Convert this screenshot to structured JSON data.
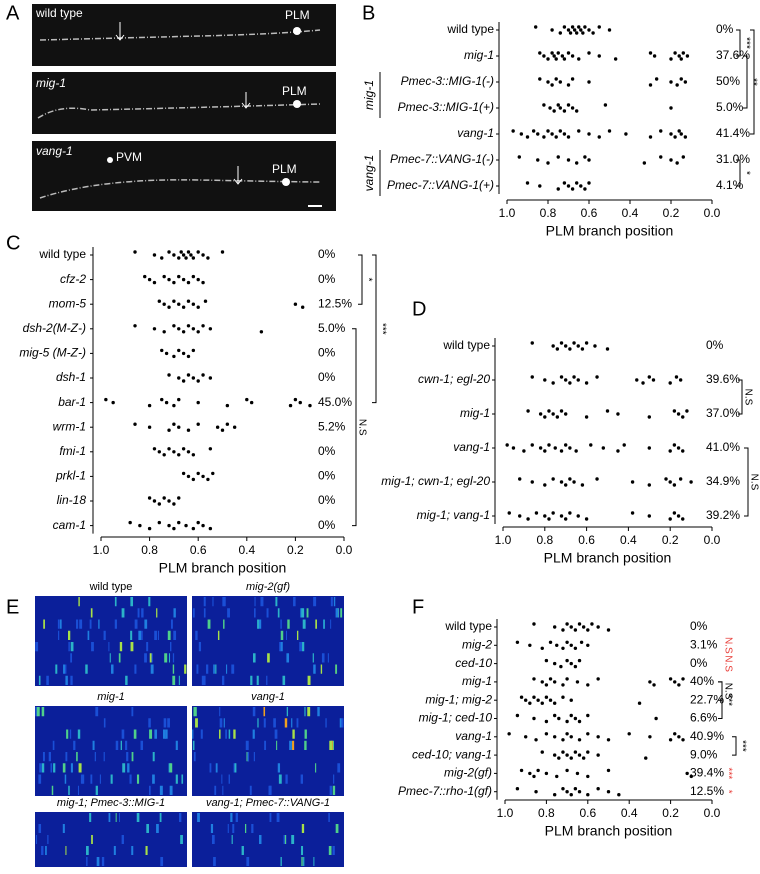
{
  "panel_labels": [
    "A",
    "B",
    "C",
    "D",
    "E",
    "F"
  ],
  "panel_a": {
    "images": [
      {
        "genotype": "wild type",
        "cells": [
          "PLM"
        ]
      },
      {
        "genotype": "mig-1",
        "cells": [
          "PLM"
        ]
      },
      {
        "genotype": "vang-1",
        "cells": [
          "PVM",
          "PLM"
        ]
      }
    ]
  },
  "panel_e": {
    "titles": [
      "wild type",
      "mig-2(gf)",
      "mig-1",
      "vang-1",
      "mig-1; Pmec-3::MIG-1",
      "vang-1; Pmec-7::VANG-1"
    ]
  },
  "chart_data": [
    {
      "type": "dot",
      "xlabel": "PLM branch position",
      "xlim": [
        1,
        0
      ],
      "xticks": [
        {
          "value": 1,
          "label": "1.0"
        },
        0.8,
        0.6,
        0.4,
        0.2,
        {
          "value": 0,
          "label": "0.0"
        }
      ],
      "color": "#000000",
      "categories": [
        "wild type",
        "mig-1",
        "Pmec-3::MIG-1(-)",
        "Pmec-3::MIG-1(+)",
        "vang-1",
        "Pmec-7::VANG-1(-)",
        "Pmec-7::VANG-1(+)"
      ],
      "values": [
        [
          0.86,
          0.78,
          0.74,
          0.72,
          0.7,
          0.69,
          0.68,
          0.67,
          0.66,
          0.65,
          0.64,
          0.63,
          0.62,
          0.6,
          0.58,
          0.55,
          0.5
        ],
        [
          0.84,
          0.82,
          0.8,
          0.78,
          0.77,
          0.76,
          0.75,
          0.73,
          0.72,
          0.7,
          0.68,
          0.65,
          0.6,
          0.55,
          0.47,
          0.3,
          0.28,
          0.2,
          0.18,
          0.16,
          0.15,
          0.14,
          0.12
        ],
        [
          0.84,
          0.8,
          0.78,
          0.76,
          0.74,
          0.7,
          0.68,
          0.6,
          0.3,
          0.27,
          0.2,
          0.17,
          0.15,
          0.13
        ],
        [
          0.82,
          0.79,
          0.77,
          0.75,
          0.74,
          0.72,
          0.7,
          0.68,
          0.66,
          0.52,
          0.2
        ],
        [
          0.97,
          0.93,
          0.9,
          0.87,
          0.85,
          0.82,
          0.8,
          0.78,
          0.76,
          0.74,
          0.72,
          0.7,
          0.65,
          0.6,
          0.55,
          0.5,
          0.42,
          0.3,
          0.25,
          0.2,
          0.18,
          0.16,
          0.15,
          0.13
        ],
        [
          0.94,
          0.85,
          0.8,
          0.75,
          0.7,
          0.66,
          0.62,
          0.6,
          0.33,
          0.25,
          0.2,
          0.17,
          0.14
        ],
        [
          0.9,
          0.84,
          0.75,
          0.72,
          0.7,
          0.68,
          0.66,
          0.64,
          0.62,
          0.6
        ]
      ],
      "percents": [
        0,
        37.6,
        50,
        5.0,
        41.4,
        31.0,
        4.1
      ],
      "percent_labels": [
        "0%",
        "37.6%",
        "50%",
        "5.0%",
        "41.4%",
        "31.0%",
        "4.1%"
      ],
      "group_labels": [
        {
          "label": "mig-1",
          "rows": [
            2,
            3
          ]
        },
        {
          "label": "vang-1",
          "rows": [
            5,
            6
          ]
        }
      ],
      "significance": [
        {
          "label": "***",
          "rows": [
            0,
            1
          ],
          "color": "#000000"
        },
        {
          "label": "***",
          "rows": [
            0,
            4
          ],
          "color": "#000000"
        },
        {
          "label": "**",
          "rows": [
            1,
            3
          ],
          "color": "#000000"
        },
        {
          "label": "*",
          "rows": [
            5,
            6
          ],
          "color": "#000000"
        }
      ]
    },
    {
      "type": "dot",
      "xlabel": "PLM branch position",
      "xlim": [
        1,
        0
      ],
      "xticks": [
        {
          "value": 1,
          "label": "1.0"
        },
        0.8,
        0.6,
        0.4,
        0.2,
        {
          "value": 0,
          "label": "0.0"
        }
      ],
      "color": "#000000",
      "categories": [
        "wild type",
        "cfz-2",
        "mom-5",
        "dsh-2(M-Z-)",
        "mig-5 (M-Z-)",
        "dsh-1",
        "bar-1",
        "wrm-1",
        "fmi-1",
        "prkl-1",
        "lin-18",
        "cam-1"
      ],
      "values": [
        [
          0.86,
          0.78,
          0.75,
          0.72,
          0.7,
          0.68,
          0.67,
          0.66,
          0.65,
          0.64,
          0.63,
          0.62,
          0.6,
          0.58,
          0.56,
          0.5
        ],
        [
          0.82,
          0.8,
          0.78,
          0.74,
          0.72,
          0.7,
          0.68,
          0.66,
          0.64,
          0.62,
          0.6,
          0.58
        ],
        [
          0.76,
          0.74,
          0.72,
          0.7,
          0.68,
          0.66,
          0.64,
          0.62,
          0.6,
          0.57,
          0.2,
          0.17
        ],
        [
          0.86,
          0.78,
          0.74,
          0.7,
          0.68,
          0.66,
          0.64,
          0.62,
          0.6,
          0.58,
          0.55,
          0.34
        ],
        [
          0.75,
          0.73,
          0.7,
          0.68,
          0.66,
          0.64,
          0.62
        ],
        [
          0.72,
          0.68,
          0.66,
          0.64,
          0.62,
          0.6,
          0.58,
          0.55
        ],
        [
          0.98,
          0.95,
          0.8,
          0.75,
          0.73,
          0.7,
          0.68,
          0.6,
          0.48,
          0.4,
          0.38,
          0.22,
          0.2,
          0.18,
          0.14
        ],
        [
          0.86,
          0.8,
          0.72,
          0.7,
          0.68,
          0.64,
          0.6,
          0.52,
          0.5,
          0.48,
          0.45
        ],
        [
          0.78,
          0.76,
          0.74,
          0.72,
          0.7,
          0.68,
          0.66,
          0.64,
          0.62,
          0.55
        ],
        [
          0.66,
          0.64,
          0.62,
          0.6,
          0.58,
          0.56,
          0.54
        ],
        [
          0.8,
          0.78,
          0.76,
          0.74,
          0.72,
          0.7,
          0.68
        ],
        [
          0.88,
          0.84,
          0.8,
          0.76,
          0.72,
          0.7,
          0.68,
          0.65,
          0.62,
          0.6,
          0.58,
          0.55
        ]
      ],
      "percents": [
        0,
        0,
        12.5,
        5.0,
        0,
        0,
        45.0,
        5.2,
        0,
        0,
        0,
        0
      ],
      "percent_labels": [
        "0%",
        "0%",
        "12.5%",
        "5.0%",
        "0%",
        "0%",
        "45.0%",
        "5.2%",
        "0%",
        "0%",
        "0%",
        "0%"
      ],
      "significance": [
        {
          "label": "*",
          "rows": [
            0,
            2
          ],
          "color": "#000000"
        },
        {
          "label": "***",
          "rows": [
            0,
            6
          ],
          "color": "#000000"
        },
        {
          "label": "N.S",
          "rows": [
            3,
            11
          ],
          "color": "#000000"
        }
      ]
    },
    {
      "type": "dot",
      "xlabel": "PLM branch position",
      "xlim": [
        1,
        0
      ],
      "xticks": [
        {
          "value": 1,
          "label": "1.0"
        },
        0.8,
        0.6,
        0.4,
        0.2,
        {
          "value": 0,
          "label": "0.0"
        }
      ],
      "color": "#000000",
      "categories": [
        "wild type",
        "cwn-1; egl-20",
        "mig-1",
        "vang-1",
        "mig-1; cwn-1; egl-20",
        "mig-1; vang-1"
      ],
      "values": [
        [
          0.86,
          0.76,
          0.74,
          0.72,
          0.7,
          0.68,
          0.66,
          0.64,
          0.62,
          0.6,
          0.56,
          0.5
        ],
        [
          0.86,
          0.8,
          0.76,
          0.72,
          0.7,
          0.68,
          0.66,
          0.64,
          0.6,
          0.55,
          0.36,
          0.33,
          0.3,
          0.28,
          0.2,
          0.17,
          0.15
        ],
        [
          0.88,
          0.82,
          0.8,
          0.78,
          0.76,
          0.74,
          0.72,
          0.7,
          0.6,
          0.5,
          0.45,
          0.3,
          0.18,
          0.16,
          0.14,
          0.12
        ],
        [
          0.98,
          0.95,
          0.9,
          0.86,
          0.82,
          0.8,
          0.78,
          0.75,
          0.72,
          0.7,
          0.68,
          0.65,
          0.58,
          0.52,
          0.45,
          0.42,
          0.3,
          0.2,
          0.18,
          0.16,
          0.14
        ],
        [
          0.92,
          0.86,
          0.8,
          0.76,
          0.72,
          0.7,
          0.68,
          0.66,
          0.62,
          0.55,
          0.38,
          0.3,
          0.22,
          0.2,
          0.18,
          0.15,
          0.1
        ],
        [
          0.97,
          0.92,
          0.88,
          0.84,
          0.8,
          0.78,
          0.76,
          0.72,
          0.7,
          0.68,
          0.64,
          0.6,
          0.38,
          0.3,
          0.2,
          0.18,
          0.16,
          0.14
        ]
      ],
      "percents": [
        0,
        39.6,
        37.0,
        41.0,
        34.9,
        39.2
      ],
      "percent_labels": [
        "0%",
        "39.6%",
        "37.0%",
        "41.0%",
        "34.9%",
        "39.2%"
      ],
      "significance": [
        {
          "label": "N.S",
          "rows": [
            1,
            2
          ],
          "color": "#000000"
        },
        {
          "label": "N.S",
          "rows": [
            3,
            5
          ],
          "color": "#000000"
        }
      ]
    },
    {
      "type": "dot",
      "xlabel": "PLM branch position",
      "xlim": [
        1,
        0
      ],
      "xticks": [
        {
          "value": 1,
          "label": "1.0"
        },
        0.8,
        0.6,
        0.4,
        0.2,
        {
          "value": 0,
          "label": "0.0"
        }
      ],
      "color": "#000000",
      "categories": [
        "wild type",
        "mig-2",
        "ced-10",
        "mig-1",
        "mig-1; mig-2",
        "mig-1; ced-10",
        "vang-1",
        "ced-10; vang-1",
        "mig-2(gf)",
        "Pmec-7::rho-1(gf)"
      ],
      "values": [
        [
          0.86,
          0.76,
          0.72,
          0.7,
          0.68,
          0.66,
          0.64,
          0.62,
          0.6,
          0.58,
          0.55,
          0.5
        ],
        [
          0.94,
          0.88,
          0.82,
          0.78,
          0.75,
          0.72,
          0.7,
          0.68,
          0.66,
          0.63,
          0.6
        ],
        [
          0.8,
          0.76,
          0.73,
          0.7,
          0.68,
          0.66,
          0.64
        ],
        [
          0.86,
          0.82,
          0.8,
          0.78,
          0.76,
          0.72,
          0.7,
          0.65,
          0.6,
          0.55,
          0.3,
          0.28,
          0.2,
          0.18,
          0.16,
          0.14
        ],
        [
          0.92,
          0.9,
          0.88,
          0.86,
          0.84,
          0.82,
          0.8,
          0.78,
          0.76,
          0.72,
          0.68,
          0.35
        ],
        [
          0.94,
          0.86,
          0.8,
          0.76,
          0.74,
          0.7,
          0.68,
          0.66,
          0.64,
          0.6,
          0.27
        ],
        [
          0.98,
          0.9,
          0.85,
          0.8,
          0.76,
          0.72,
          0.7,
          0.68,
          0.64,
          0.6,
          0.55,
          0.5,
          0.4,
          0.3,
          0.2,
          0.18,
          0.16,
          0.14
        ],
        [
          0.82,
          0.76,
          0.74,
          0.72,
          0.7,
          0.68,
          0.66,
          0.64,
          0.62,
          0.6,
          0.55,
          0.32
        ],
        [
          0.92,
          0.88,
          0.86,
          0.84,
          0.8,
          0.75,
          0.7,
          0.65,
          0.6,
          0.5,
          0.12,
          0.1
        ],
        [
          0.94,
          0.85,
          0.76,
          0.72,
          0.7,
          0.68,
          0.66,
          0.64,
          0.6,
          0.55,
          0.5,
          0.45
        ]
      ],
      "percents": [
        0,
        3.1,
        0,
        40,
        22.7,
        6.6,
        40.9,
        9.0,
        39.4,
        12.5
      ],
      "percent_labels": [
        "0%",
        "3.1%",
        "0%",
        "40%",
        "22.7%",
        "6.6%",
        "40.9%",
        "9.0%",
        "39.4%",
        "12.5%"
      ],
      "significance": [
        {
          "label": "N.S",
          "rows": [
            1,
            1
          ],
          "color": "#e8413c"
        },
        {
          "label": "N.S",
          "rows": [
            2,
            2
          ],
          "color": "#e8413c"
        },
        {
          "label": "N.S",
          "rows": [
            3,
            4
          ],
          "color": "#000000"
        },
        {
          "label": "***",
          "rows": [
            3,
            5
          ],
          "color": "#000000"
        },
        {
          "label": "***",
          "rows": [
            6,
            7
          ],
          "color": "#000000"
        },
        {
          "label": "***",
          "rows": [
            8,
            8
          ],
          "color": "#e8413c"
        },
        {
          "label": "*",
          "rows": [
            9,
            9
          ],
          "color": "#e8413c"
        }
      ]
    }
  ]
}
